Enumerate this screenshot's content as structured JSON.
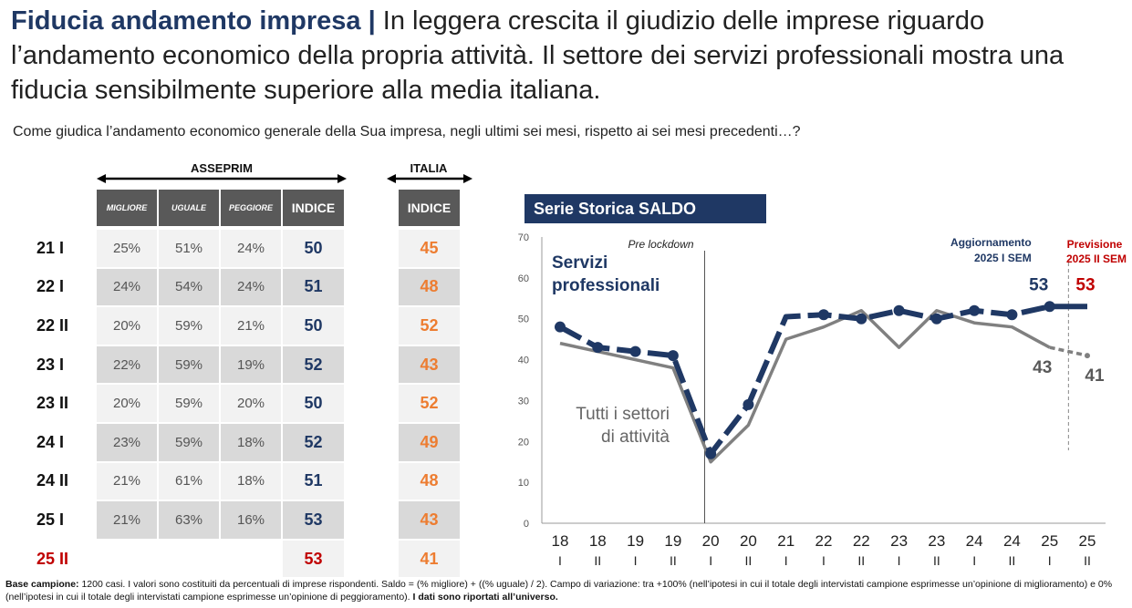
{
  "title": {
    "bold": "Fiducia andamento impresa",
    "separator": "|",
    "rest": "In leggera crescita il giudizio delle imprese riguardo l’andamento economico della propria attività. Il settore dei servizi professionali mostra una fiducia sensibilmente superiore alla media italiana."
  },
  "question": "Come giudica l’andamento economico generale della Sua impresa, negli ultimi sei mesi, rispetto ai sei mesi precedenti…?",
  "table": {
    "group_asseprim": "ASSEPRIM",
    "group_italia": "ITALIA",
    "columns": [
      "MIGLIORE",
      "UGUALE",
      "PEGGIORE",
      "INDICE"
    ],
    "italia_column": "INDICE",
    "rows": [
      {
        "period": "21 I",
        "migliore": "25%",
        "uguale": "51%",
        "peggiore": "24%",
        "indice": "50",
        "italia": "45"
      },
      {
        "period": "22 I",
        "migliore": "24%",
        "uguale": "54%",
        "peggiore": "24%",
        "indice": "51",
        "italia": "48"
      },
      {
        "period": "22 II",
        "migliore": "20%",
        "uguale": "59%",
        "peggiore": "21%",
        "indice": "50",
        "italia": "52"
      },
      {
        "period": "23 I",
        "migliore": "22%",
        "uguale": "59%",
        "peggiore": "19%",
        "indice": "52",
        "italia": "43"
      },
      {
        "period": "23 II",
        "migliore": "20%",
        "uguale": "59%",
        "peggiore": "20%",
        "indice": "50",
        "italia": "52"
      },
      {
        "period": "24 I",
        "migliore": "23%",
        "uguale": "59%",
        "peggiore": "18%",
        "indice": "52",
        "italia": "49"
      },
      {
        "period": "24 II",
        "migliore": "21%",
        "uguale": "61%",
        "peggiore": "18%",
        "indice": "51",
        "italia": "48"
      },
      {
        "period": "25 I",
        "migliore": "21%",
        "uguale": "63%",
        "peggiore": "16%",
        "indice": "53",
        "italia": "43"
      },
      {
        "period": "25 II",
        "migliore": "",
        "uguale": "",
        "peggiore": "",
        "indice": "53",
        "italia": "41",
        "forecast": true
      }
    ]
  },
  "chart_data": {
    "type": "line",
    "title": "Serie Storica SALDO",
    "ylim": [
      0,
      70
    ],
    "yticks": [
      0,
      10,
      20,
      30,
      40,
      50,
      60,
      70
    ],
    "categories": [
      {
        "year": "18",
        "half": "I"
      },
      {
        "year": "18",
        "half": "II"
      },
      {
        "year": "19",
        "half": "I"
      },
      {
        "year": "19",
        "half": "II"
      },
      {
        "year": "20",
        "half": "I"
      },
      {
        "year": "20",
        "half": "II"
      },
      {
        "year": "21",
        "half": "I"
      },
      {
        "year": "22",
        "half": "I"
      },
      {
        "year": "22",
        "half": "II"
      },
      {
        "year": "23",
        "half": "I"
      },
      {
        "year": "23",
        "half": "II"
      },
      {
        "year": "24",
        "half": "I"
      },
      {
        "year": "24",
        "half": "II"
      },
      {
        "year": "25",
        "half": "I"
      },
      {
        "year": "25",
        "half": "II"
      }
    ],
    "series": [
      {
        "name": "Servizi professionali",
        "label_lines": [
          "Servizi",
          "professionali"
        ],
        "color": "#1f3864",
        "values": [
          48,
          43,
          42,
          41,
          17,
          29,
          50.5,
          51,
          50,
          52,
          50,
          52,
          51,
          53,
          53
        ],
        "end_labels": [
          {
            "index": 13,
            "text": "53",
            "color": "#1f3864"
          },
          {
            "index": 14,
            "text": "53",
            "color": "#c00000"
          }
        ]
      },
      {
        "name": "Tutti i settori di attività",
        "label_lines": [
          "Tutti i settori",
          "di attività"
        ],
        "color": "#808080",
        "values": [
          44,
          null,
          null,
          38,
          15,
          24,
          45,
          48,
          52,
          43,
          52,
          49,
          48,
          43,
          41
        ],
        "end_labels": [
          {
            "index": 13,
            "text": "43",
            "color": "#595959"
          },
          {
            "index": 14,
            "text": "41",
            "color": "#595959"
          }
        ]
      }
    ],
    "annotations": {
      "pre_lockdown": "Pre lockdown",
      "aggiornamento": [
        "Aggiornamento",
        "2025 I SEM"
      ],
      "previsione": [
        "Previsione",
        "2025 II SEM"
      ]
    }
  },
  "footnote": {
    "label": "Base campione:",
    "text": " 1200 casi. I valori sono costituiti da percentuali di imprese rispondenti. Saldo = (% migliore) + ((% uguale) / 2). Campo di variazione: tra +100% (nell’ipotesi in cui il totale degli intervistati campione esprimesse un’opinione di miglioramento) e 0% (nell’ipotesi in cui il totale degli intervistati campione esprimesse un’opinione di peggioramento). ",
    "bold_tail": "I dati sono riportati all’universo."
  }
}
